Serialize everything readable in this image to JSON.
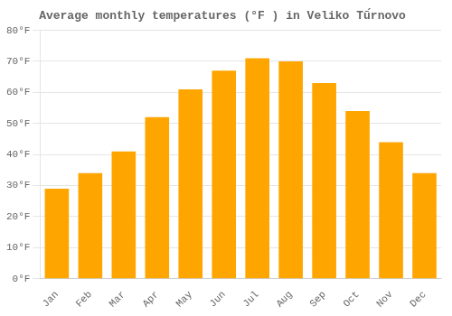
{
  "chart_data": {
    "type": "bar",
    "title": "Average monthly temperatures (°F ) in Veliko Tū́rnovo",
    "categories": [
      "Jan",
      "Feb",
      "Mar",
      "Apr",
      "May",
      "Jun",
      "Jul",
      "Aug",
      "Sep",
      "Oct",
      "Nov",
      "Dec"
    ],
    "values": [
      29,
      34,
      41,
      52,
      61,
      67,
      71,
      70,
      63,
      54,
      44,
      34
    ],
    "color": "#FFA500",
    "ylim": [
      0,
      80
    ],
    "yticks": [
      {
        "value": 0,
        "label": "0°F"
      },
      {
        "value": 10,
        "label": "10°F"
      },
      {
        "value": 20,
        "label": "20°F"
      },
      {
        "value": 30,
        "label": "30°F"
      },
      {
        "value": 40,
        "label": "40°F"
      },
      {
        "value": 50,
        "label": "50°F"
      },
      {
        "value": 60,
        "label": "60°F"
      },
      {
        "value": 70,
        "label": "70°F"
      },
      {
        "value": 80,
        "label": "80°F"
      }
    ],
    "grid": true
  }
}
